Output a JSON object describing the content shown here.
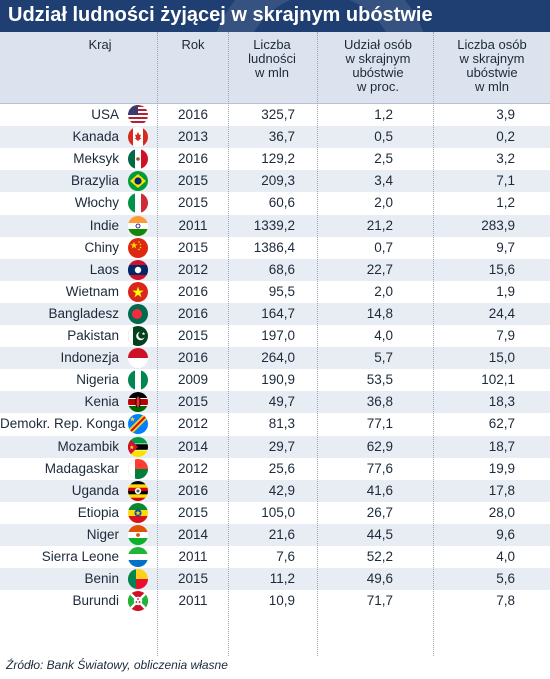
{
  "title": "Udział ludności żyjącej w skrajnym ubóstwie",
  "headers": {
    "country": "Kraj",
    "year": "Rok",
    "population": [
      "Liczba",
      "ludności",
      "w mln"
    ],
    "share": [
      "Udział osób",
      "w skrajnym",
      "ubóstwie",
      "w proc."
    ],
    "poor": [
      "Liczba osób",
      "w skrajnym",
      "ubóstwie",
      "w mln"
    ]
  },
  "rows": [
    {
      "country": "USA",
      "flag": "usa-flag-icon",
      "year": "2016",
      "population": "325,7",
      "share": "1,2",
      "poor": "3,9"
    },
    {
      "country": "Kanada",
      "flag": "canada-flag-icon",
      "year": "2013",
      "population": "36,7",
      "share": "0,5",
      "poor": "0,2"
    },
    {
      "country": "Meksyk",
      "flag": "mexico-flag-icon",
      "year": "2016",
      "population": "129,2",
      "share": "2,5",
      "poor": "3,2"
    },
    {
      "country": "Brazylia",
      "flag": "brazil-flag-icon",
      "year": "2015",
      "population": "209,3",
      "share": "3,4",
      "poor": "7,1"
    },
    {
      "country": "Włochy",
      "flag": "italy-flag-icon",
      "year": "2015",
      "population": "60,6",
      "share": "2,0",
      "poor": "1,2"
    },
    {
      "country": "Indie",
      "flag": "india-flag-icon",
      "year": "2011",
      "population": "1339,2",
      "share": "21,2",
      "poor": "283,9"
    },
    {
      "country": "Chiny",
      "flag": "china-flag-icon",
      "year": "2015",
      "population": "1386,4",
      "share": "0,7",
      "poor": "9,7"
    },
    {
      "country": "Laos",
      "flag": "laos-flag-icon",
      "year": "2012",
      "population": "68,6",
      "share": "22,7",
      "poor": "15,6"
    },
    {
      "country": "Wietnam",
      "flag": "vietnam-flag-icon",
      "year": "2016",
      "population": "95,5",
      "share": "2,0",
      "poor": "1,9"
    },
    {
      "country": "Bangladesz",
      "flag": "bangladesh-flag-icon",
      "year": "2016",
      "population": "164,7",
      "share": "14,8",
      "poor": "24,4"
    },
    {
      "country": "Pakistan",
      "flag": "pakistan-flag-icon",
      "year": "2015",
      "population": "197,0",
      "share": "4,0",
      "poor": "7,9"
    },
    {
      "country": "Indonezja",
      "flag": "indonesia-flag-icon",
      "year": "2016",
      "population": "264,0",
      "share": "5,7",
      "poor": "15,0"
    },
    {
      "country": "Nigeria",
      "flag": "nigeria-flag-icon",
      "year": "2009",
      "population": "190,9",
      "share": "53,5",
      "poor": "102,1"
    },
    {
      "country": "Kenia",
      "flag": "kenya-flag-icon",
      "year": "2015",
      "population": "49,7",
      "share": "36,8",
      "poor": "18,3"
    },
    {
      "country": "Demokr. Rep. Konga",
      "flag": "dr-congo-flag-icon",
      "year": "2012",
      "population": "81,3",
      "share": "77,1",
      "poor": "62,7"
    },
    {
      "country": "Mozambik",
      "flag": "mozambique-flag-icon",
      "year": "2014",
      "population": "29,7",
      "share": "62,9",
      "poor": "18,7"
    },
    {
      "country": "Madagaskar",
      "flag": "madagascar-flag-icon",
      "year": "2012",
      "population": "25,6",
      "share": "77,6",
      "poor": "19,9"
    },
    {
      "country": "Uganda",
      "flag": "uganda-flag-icon",
      "year": "2016",
      "population": "42,9",
      "share": "41,6",
      "poor": "17,8"
    },
    {
      "country": "Etiopia",
      "flag": "ethiopia-flag-icon",
      "year": "2015",
      "population": "105,0",
      "share": "26,7",
      "poor": "28,0"
    },
    {
      "country": "Niger",
      "flag": "niger-flag-icon",
      "year": "2014",
      "population": "21,6",
      "share": "44,5",
      "poor": "9,6"
    },
    {
      "country": "Sierra Leone",
      "flag": "sierra-leone-flag-icon",
      "year": "2011",
      "population": "7,6",
      "share": "52,2",
      "poor": "4,0"
    },
    {
      "country": "Benin",
      "flag": "benin-flag-icon",
      "year": "2015",
      "population": "11,2",
      "share": "49,6",
      "poor": "5,6"
    },
    {
      "country": "Burundi",
      "flag": "burundi-flag-icon",
      "year": "2011",
      "population": "10,9",
      "share": "71,7",
      "poor": "7,8"
    }
  ],
  "source": "Źródło: Bank Światowy, obliczenia własne",
  "colors": {
    "title_bg": "#1f3f73",
    "header_bg": "#dde3ee",
    "stripe": "#e8ecf3",
    "text": "#1c2a3a"
  },
  "chart_data": {
    "type": "table",
    "title": "Udział ludności żyjącej w skrajnym ubóstwie",
    "columns": [
      "Kraj",
      "Rok",
      "Liczba ludności w mln",
      "Udział osób w skrajnym ubóstwie w proc.",
      "Liczba osób w skrajnym ubóstwie w mln"
    ],
    "rows": [
      [
        "USA",
        2016,
        325.7,
        1.2,
        3.9
      ],
      [
        "Kanada",
        2013,
        36.7,
        0.5,
        0.2
      ],
      [
        "Meksyk",
        2016,
        129.2,
        2.5,
        3.2
      ],
      [
        "Brazylia",
        2015,
        209.3,
        3.4,
        7.1
      ],
      [
        "Włochy",
        2015,
        60.6,
        2.0,
        1.2
      ],
      [
        "Indie",
        2011,
        1339.2,
        21.2,
        283.9
      ],
      [
        "Chiny",
        2015,
        1386.4,
        0.7,
        9.7
      ],
      [
        "Laos",
        2012,
        68.6,
        22.7,
        15.6
      ],
      [
        "Wietnam",
        2016,
        95.5,
        2.0,
        1.9
      ],
      [
        "Bangladesz",
        2016,
        164.7,
        14.8,
        24.4
      ],
      [
        "Pakistan",
        2015,
        197.0,
        4.0,
        7.9
      ],
      [
        "Indonezja",
        2016,
        264.0,
        5.7,
        15.0
      ],
      [
        "Nigeria",
        2009,
        190.9,
        53.5,
        102.1
      ],
      [
        "Kenia",
        2015,
        49.7,
        36.8,
        18.3
      ],
      [
        "Demokr. Rep. Konga",
        2012,
        81.3,
        77.1,
        62.7
      ],
      [
        "Mozambik",
        2014,
        29.7,
        62.9,
        18.7
      ],
      [
        "Madagaskar",
        2012,
        25.6,
        77.6,
        19.9
      ],
      [
        "Uganda",
        2016,
        42.9,
        41.6,
        17.8
      ],
      [
        "Etiopia",
        2015,
        105.0,
        26.7,
        28.0
      ],
      [
        "Niger",
        2014,
        21.6,
        44.5,
        9.6
      ],
      [
        "Sierra Leone",
        2011,
        7.6,
        52.2,
        4.0
      ],
      [
        "Benin",
        2015,
        11.2,
        49.6,
        5.6
      ],
      [
        "Burundi",
        2011,
        10.9,
        71.7,
        7.8
      ]
    ]
  }
}
